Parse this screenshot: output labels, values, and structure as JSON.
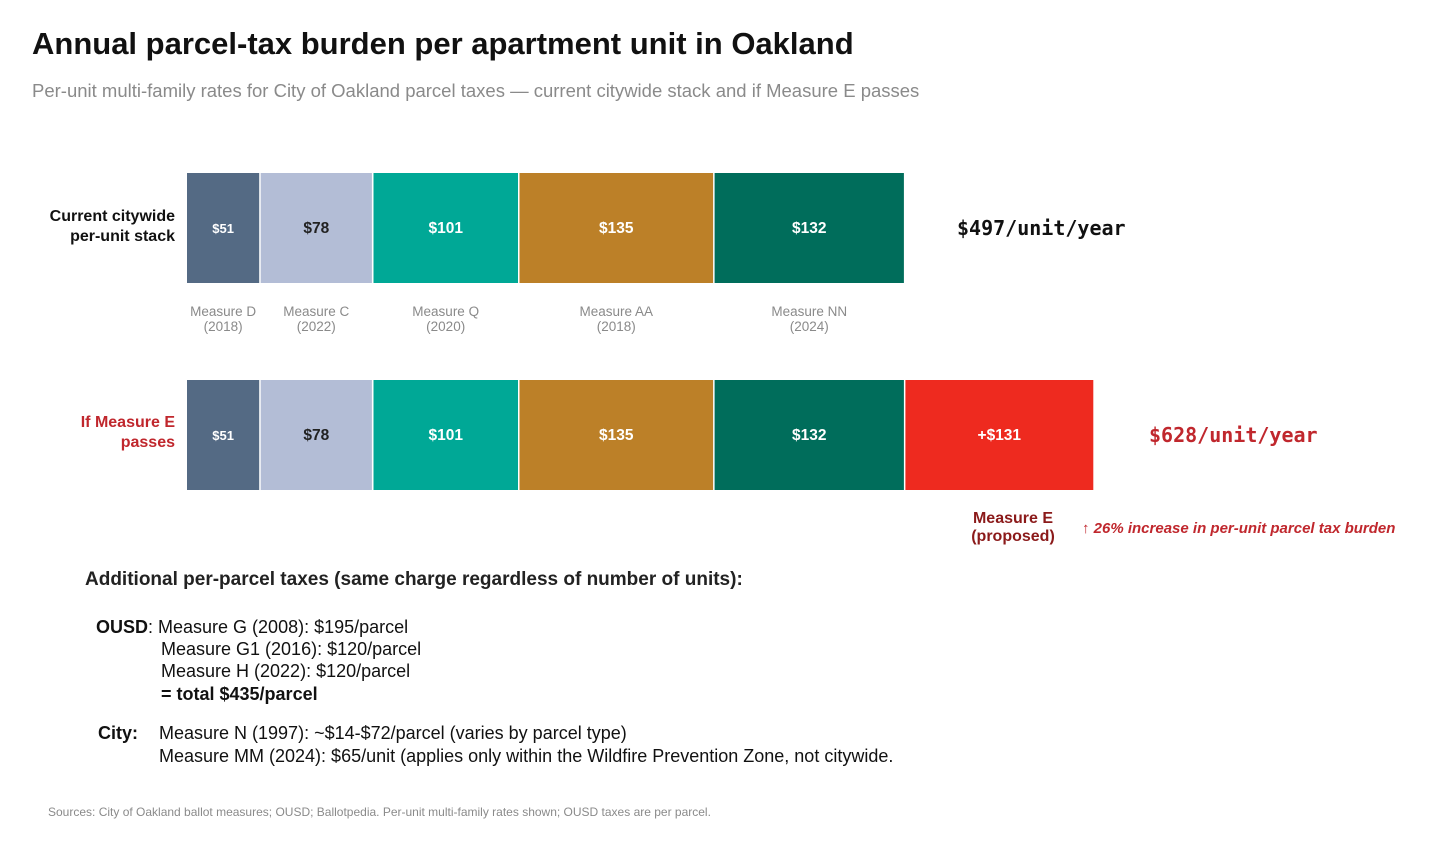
{
  "title": "Annual parcel-tax burden per apartment unit in Oakland",
  "subtitle": "Per-unit multi-family rates for City of Oakland parcel taxes — current citywide stack and if Measure E passes",
  "chart_data": {
    "type": "bar",
    "orientation": "horizontal-stacked",
    "categories": [
      "Current citywide per-unit stack",
      "If Measure E passes"
    ],
    "series": [
      {
        "name": "Measure D (2018)",
        "label": "Measure D",
        "year": "(2018)",
        "values": [
          51,
          51
        ],
        "value_labels": [
          "$51",
          "$51"
        ],
        "color": "#546a84",
        "text_color": "#ffffff"
      },
      {
        "name": "Measure C (2022)",
        "label": "Measure C",
        "year": "(2022)",
        "values": [
          78,
          78
        ],
        "value_labels": [
          "$78",
          "$78"
        ],
        "color": "#b3bdd6",
        "text_color": "#222222"
      },
      {
        "name": "Measure Q (2020)",
        "label": "Measure Q",
        "year": "(2020)",
        "values": [
          101,
          101
        ],
        "value_labels": [
          "$101",
          "$101"
        ],
        "color": "#00a896",
        "text_color": "#ffffff"
      },
      {
        "name": "Measure AA (2018)",
        "label": "Measure AA",
        "year": "(2018)",
        "values": [
          135,
          135
        ],
        "value_labels": [
          "$135",
          "$135"
        ],
        "color": "#bc8028",
        "text_color": "#ffffff"
      },
      {
        "name": "Measure NN (2024)",
        "label": "Measure NN",
        "year": "(2024)",
        "values": [
          132,
          132
        ],
        "value_labels": [
          "$132",
          "$132"
        ],
        "color": "#006d5b",
        "text_color": "#ffffff"
      },
      {
        "name": "Measure E (proposed)",
        "label": "Measure E",
        "year": "(proposed)",
        "values": [
          0,
          131
        ],
        "value_labels": [
          "",
          "+$131"
        ],
        "color": "#ee2a1f",
        "text_color": "#ffffff"
      }
    ],
    "totals": [
      "$497/unit/year",
      "$628/unit/year"
    ],
    "annotation": "↑ 26% increase in per-unit parcel tax burden",
    "xlabel": "",
    "ylabel": "",
    "grid": false,
    "colors": {
      "current_total": "#111111",
      "proposed_total": "#c0272d",
      "proposed_label": "#8b1a1a"
    }
  },
  "rows": {
    "row1_label_line1": "Current citywide",
    "row1_label_line2": "per-unit stack",
    "row2_label_line1": "If Measure E",
    "row2_label_line2": "passes"
  },
  "additional": {
    "heading": "Additional per-parcel taxes (same charge regardless of number of units):",
    "ousd_label": "OUSD",
    "ousd_lines": [
      ": Measure G (2008): $195/parcel",
      "Measure G1 (2016): $120/parcel",
      "Measure H (2022): $120/parcel"
    ],
    "ousd_total": "= total $435/parcel",
    "city_label": "City:",
    "city_lines": [
      "Measure N (1997): ~$14-$72/parcel (varies by parcel type)",
      "Measure MM (2024): $65/unit (applies only within the Wildfire Prevention Zone, not citywide."
    ]
  },
  "sources": "Sources: City of Oakland ballot measures; OUSD; Ballotpedia. Per-unit multi-family rates shown; OUSD taxes are per parcel."
}
